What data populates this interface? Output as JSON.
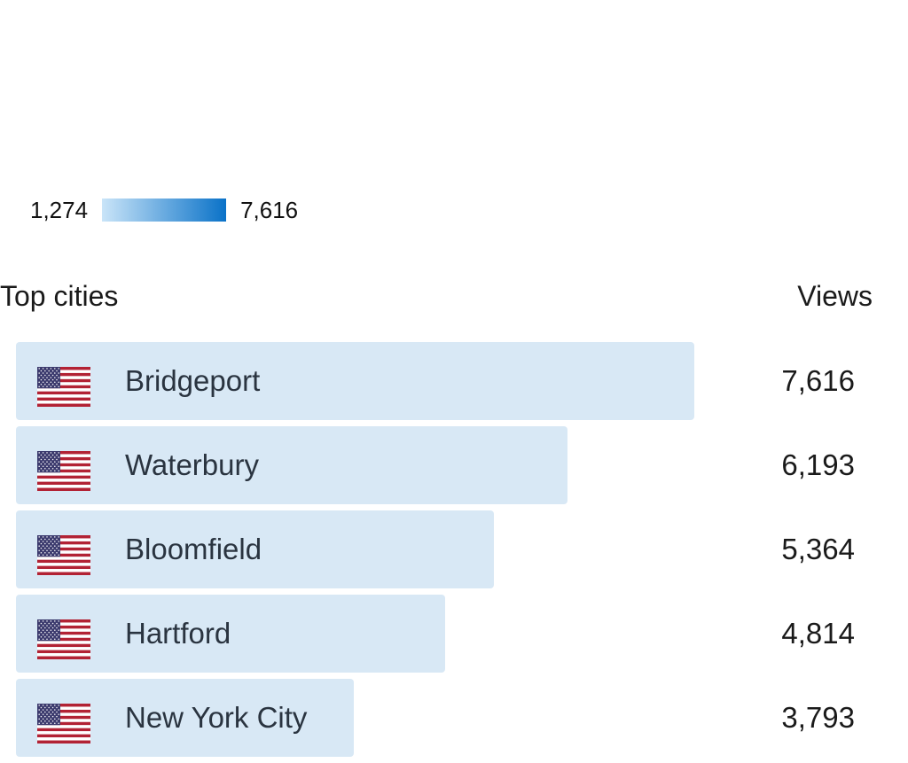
{
  "legend": {
    "min_label": "1,274",
    "max_label": "7,616",
    "gradient_start_color": "#c9e4f8",
    "gradient_end_color": "#0a72c8"
  },
  "header": {
    "title": "Top cities",
    "views_label": "Views"
  },
  "colors": {
    "bar": "#d8e8f5",
    "flag_red": "#b22234",
    "flag_white": "#ffffff",
    "flag_blue": "#3c3b6e"
  },
  "chart_data": {
    "type": "bar",
    "orientation": "horizontal",
    "title": "Top cities",
    "value_label": "Views",
    "categories": [
      "Bridgeport",
      "Waterbury",
      "Bloomfield",
      "Hartford",
      "New York City"
    ],
    "values": [
      7616,
      6193,
      5364,
      4814,
      3793
    ],
    "value_labels": [
      "7,616",
      "6,193",
      "5,364",
      "4,814",
      "3,793"
    ],
    "icon": "us-flag-icon"
  }
}
